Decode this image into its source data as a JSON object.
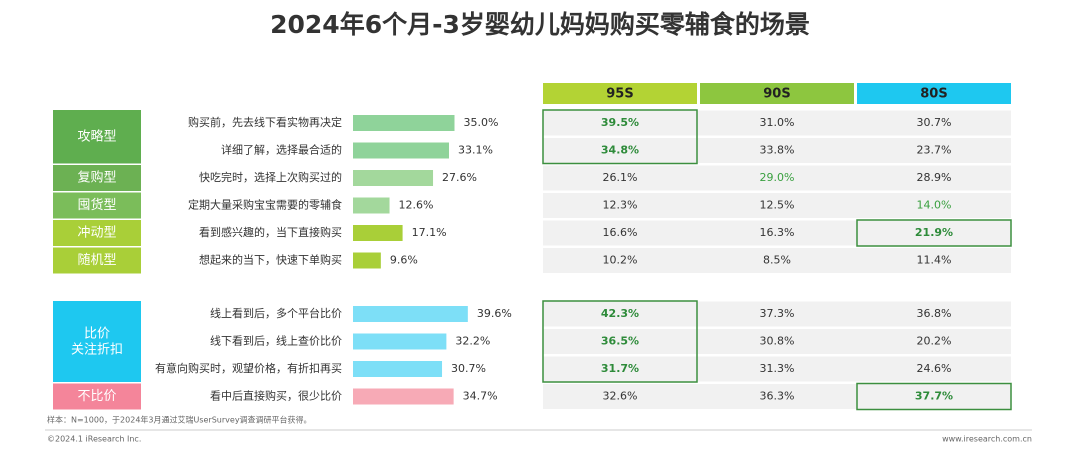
{
  "title": "2024年6个月-3岁婴幼儿妈妈购买零辅食的场景",
  "table_header": [
    {
      "label": "95S",
      "color": "#b3d334"
    },
    {
      "label": "90S",
      "color": "#8dc63f"
    },
    {
      "label": "80S",
      "color": "#1ec8f0"
    }
  ],
  "sections": [
    {
      "groups": [
        {
          "label": "攻略型",
          "color": "#5fae4f",
          "items": [
            {
              "label": "购买前，先去线下看实物再决定",
              "value": 35.0,
              "value_label": "35.0%",
              "color": "#8fd39a",
              "cells": [
                "39.5%",
                "31.0%",
                "30.7%"
              ]
            },
            {
              "label": "详细了解，选择最合适的",
              "value": 33.1,
              "value_label": "33.1%",
              "color": "#8fd39a",
              "cells": [
                "34.8%",
                "33.8%",
                "23.7%"
              ]
            }
          ]
        },
        {
          "label": "复购型",
          "color": "#6cb153",
          "items": [
            {
              "label": "快吃完时，选择上次购买过的",
              "value": 27.6,
              "value_label": "27.6%",
              "color": "#a3d89c",
              "cells": [
                "26.1%",
                "29.0%",
                "28.9%"
              ]
            }
          ]
        },
        {
          "label": "囤货型",
          "color": "#7bbd5a",
          "items": [
            {
              "label": "定期大量采购宝宝需要的零辅食",
              "value": 12.6,
              "value_label": "12.6%",
              "color": "#a3d89c",
              "cells": [
                "12.3%",
                "12.5%",
                "14.0%"
              ]
            }
          ]
        },
        {
          "label": "冲动型",
          "color": "#a9cf38",
          "items": [
            {
              "label": "看到感兴趣的，当下直接购买",
              "value": 17.1,
              "value_label": "17.1%",
              "color": "#a9cf38",
              "cells": [
                "16.6%",
                "16.3%",
                "21.9%"
              ]
            }
          ]
        },
        {
          "label": "随机型",
          "color": "#a9cf38",
          "items": [
            {
              "label": "想起来的当下，快速下单购买",
              "value": 9.6,
              "value_label": "9.6%",
              "color": "#a9cf38",
              "cells": [
                "10.2%",
                "8.5%",
                "11.4%"
              ]
            }
          ]
        }
      ]
    },
    {
      "groups": [
        {
          "label": "比价\n关注折扣",
          "color": "#1ec8f0",
          "items": [
            {
              "label": "线上看到后，多个平台比价",
              "value": 39.6,
              "value_label": "39.6%",
              "color": "#7ddff7",
              "cells": [
                "42.3%",
                "37.3%",
                "36.8%"
              ]
            },
            {
              "label": "线下看到后，线上查价比价",
              "value": 32.2,
              "value_label": "32.2%",
              "color": "#7ddff7",
              "cells": [
                "36.5%",
                "30.8%",
                "20.2%"
              ]
            },
            {
              "label": "有意向购买时，观望价格，有折扣再买",
              "value": 30.7,
              "value_label": "30.7%",
              "color": "#7ddff7",
              "cells": [
                "31.7%",
                "31.3%",
                "24.6%"
              ]
            }
          ]
        },
        {
          "label": "不比价",
          "color": "#f4859a",
          "items": [
            {
              "label": "看中后直接购买，很少比价",
              "value": 34.7,
              "value_label": "34.7%",
              "color": "#f7aab6",
              "cells": [
                "32.6%",
                "36.3%",
                "37.7%"
              ]
            }
          ]
        }
      ]
    }
  ],
  "footnote": "样本：N=1000，于2024年3月通过艾瑞UserSurvey调查调研平台获得。",
  "copyright": "©2024.1 iResearch Inc.",
  "website": "www.iresearch.com.cn"
}
